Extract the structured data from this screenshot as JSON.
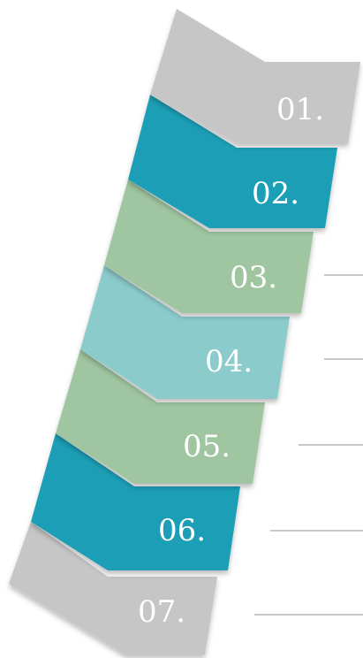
{
  "steps": [
    {
      "label": "01.",
      "color": "#c6c6c6"
    },
    {
      "label": "02.",
      "color": "#1f9fb6"
    },
    {
      "label": "03.",
      "color": "#9fc6a0"
    },
    {
      "label": "04.",
      "color": "#8ccbcc"
    },
    {
      "label": "05.",
      "color": "#9fc6a0"
    },
    {
      "label": "06.",
      "color": "#1f9fb6"
    },
    {
      "label": "07.",
      "color": "#c6c6c6"
    }
  ],
  "connector_color": "#c8c8c8"
}
